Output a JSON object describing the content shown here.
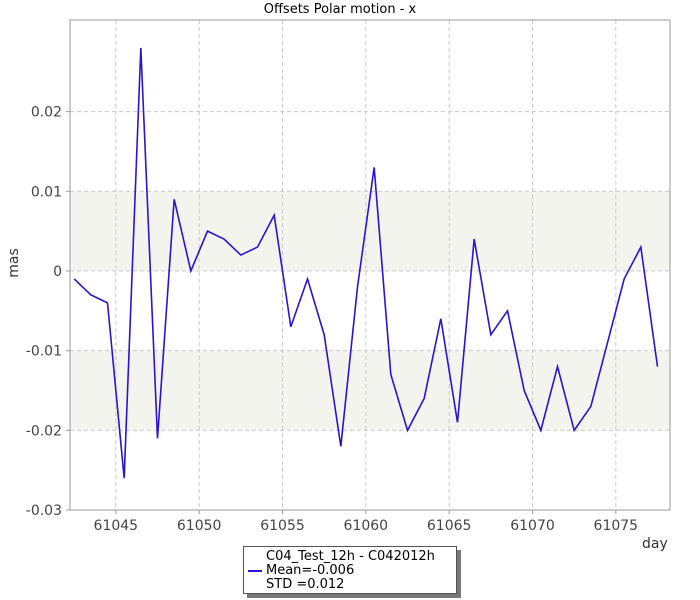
{
  "chart_data": {
    "type": "line",
    "title": "Offsets Polar motion - x",
    "xlabel": "day",
    "ylabel": "mas",
    "xlim": [
      61042.25,
      61078.25
    ],
    "ylim": [
      -0.03,
      0.0315
    ],
    "xticks": [
      61045,
      61050,
      61055,
      61060,
      61065,
      61070,
      61075
    ],
    "yticks": [
      -0.03,
      -0.02,
      -0.01,
      0,
      0.01,
      0.02
    ],
    "ytick_labels": [
      "-0.03",
      "-0.02",
      "-0.01",
      "0",
      "0.01",
      "0.02"
    ],
    "grid": true,
    "bands": [
      [
        -0.02,
        -0.01
      ],
      [
        0,
        0.01
      ]
    ],
    "legend_position": "bottom-center",
    "series_color": "#2a14d0",
    "series": [
      {
        "name": "C04_Test_12h - C042012h",
        "x": [
          61042.5,
          61043,
          61043.5,
          61044,
          61044.5,
          61045.5,
          61046.5,
          61047.5,
          61048.5,
          61049.5,
          61050.5,
          61051.5,
          61052.5,
          61053.5,
          61054.5,
          61055.5,
          61056.5,
          61057.5,
          61058.5,
          61059.5,
          61060.5,
          61061.5,
          61062.5,
          61063.5,
          61064.5,
          61065.5,
          61066.5,
          61067.5,
          61068.5,
          61069.5,
          61070.5,
          61071.5,
          61072.5,
          61073.5,
          61074.5,
          61075.5,
          61076.5,
          61077.5
        ],
        "y": [
          -0.001,
          -0.002,
          -0.003,
          -0.0035,
          -0.004,
          -0.026,
          0.028,
          -0.021,
          0.009,
          0.0,
          0.005,
          0.004,
          0.002,
          0.003,
          0.007,
          -0.007,
          -0.001,
          -0.008,
          -0.022,
          -0.002,
          0.013,
          -0.013,
          -0.02,
          -0.016,
          -0.006,
          -0.019,
          0.004,
          -0.008,
          -0.005,
          -0.015,
          -0.02,
          -0.012,
          -0.02,
          -0.017,
          -0.009,
          -0.001,
          0.003,
          -0.012
        ]
      }
    ]
  },
  "legend": {
    "series_label": "C04_Test_12h - C042012h",
    "mean_label": "Mean=-0.006",
    "std_label": "STD =0.012"
  }
}
